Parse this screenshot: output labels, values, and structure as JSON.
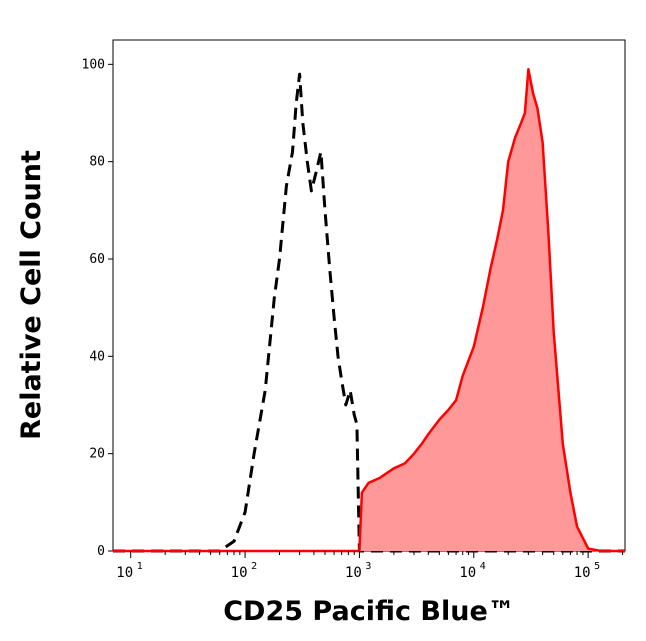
{
  "chart_data": {
    "type": "area",
    "xlabel": "CD25 Pacific Blue™",
    "ylabel": "Relative Cell Count",
    "x_scale": "log",
    "xlim": [
      7,
      210000
    ],
    "ylim": [
      0,
      105
    ],
    "x_ticks": [
      {
        "value": 10,
        "base": "10",
        "exp": "1"
      },
      {
        "value": 100,
        "base": "10",
        "exp": "2"
      },
      {
        "value": 1000,
        "base": "10",
        "exp": "3"
      },
      {
        "value": 10000,
        "base": "10",
        "exp": "4"
      },
      {
        "value": 100000,
        "base": "10",
        "exp": "5"
      }
    ],
    "y_ticks": [
      {
        "value": 0,
        "label": "0"
      },
      {
        "value": 20,
        "label": "20"
      },
      {
        "value": 40,
        "label": "40"
      },
      {
        "value": 60,
        "label": "60"
      },
      {
        "value": 80,
        "label": "80"
      },
      {
        "value": 100,
        "label": "100"
      }
    ],
    "grid": false,
    "series": [
      {
        "style": "dashed",
        "color": "#000000",
        "fill": null,
        "x": [
          7,
          60,
          80,
          100,
          120,
          150,
          180,
          200,
          230,
          260,
          280,
          300,
          320,
          350,
          380,
          420,
          460,
          500,
          550,
          600,
          650,
          700,
          760,
          830,
          900,
          950,
          1000,
          1100,
          2000,
          10000,
          210000
        ],
        "y": [
          0,
          0,
          2,
          8,
          20,
          33,
          52,
          60,
          75,
          82,
          92,
          98,
          88,
          80,
          74,
          78,
          82,
          70,
          58,
          48,
          40,
          35,
          30,
          33,
          28,
          26,
          0,
          0,
          0,
          0,
          0
        ]
      },
      {
        "style": "solid",
        "color": "#ff0000",
        "fill": "#ff9999",
        "x": [
          7,
          1000,
          1050,
          1200,
          1500,
          2000,
          2500,
          3000,
          3500,
          4000,
          5000,
          6000,
          7000,
          8000,
          10000,
          12000,
          14000,
          16000,
          18000,
          20000,
          23000,
          26000,
          28000,
          30000,
          33000,
          36000,
          40000,
          45000,
          50000,
          60000,
          70000,
          80000,
          100000,
          130000,
          210000
        ],
        "y": [
          0,
          0,
          12,
          14,
          15,
          17,
          18,
          20,
          22,
          24,
          27,
          29,
          31,
          36,
          42,
          50,
          58,
          64,
          70,
          80,
          85,
          88,
          90,
          99,
          94,
          91,
          84,
          65,
          45,
          22,
          12,
          5,
          0.5,
          0,
          0
        ]
      }
    ]
  }
}
